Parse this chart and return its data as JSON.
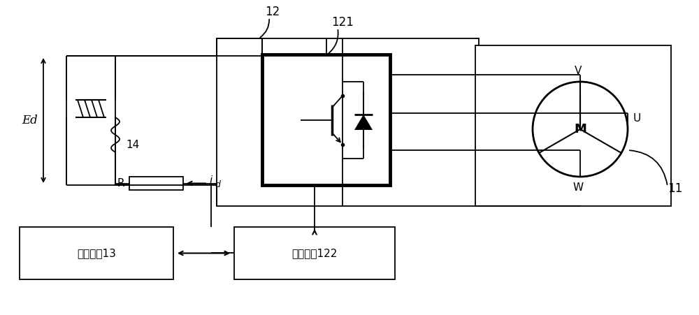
{
  "bg_color": "#ffffff",
  "fig_width": 10.0,
  "fig_height": 4.51,
  "dpi": 100,
  "label_12": "12",
  "label_121": "121",
  "label_11": "11",
  "label_14": "14",
  "label_R": "R",
  "label_Ed": "Ed",
  "label_id": "i",
  "label_id_sub": "d",
  "label_M": "M",
  "label_V": "V",
  "label_U": "U",
  "label_W": "W",
  "label_main": "主控电路13",
  "label_chip": "控制芯片122"
}
